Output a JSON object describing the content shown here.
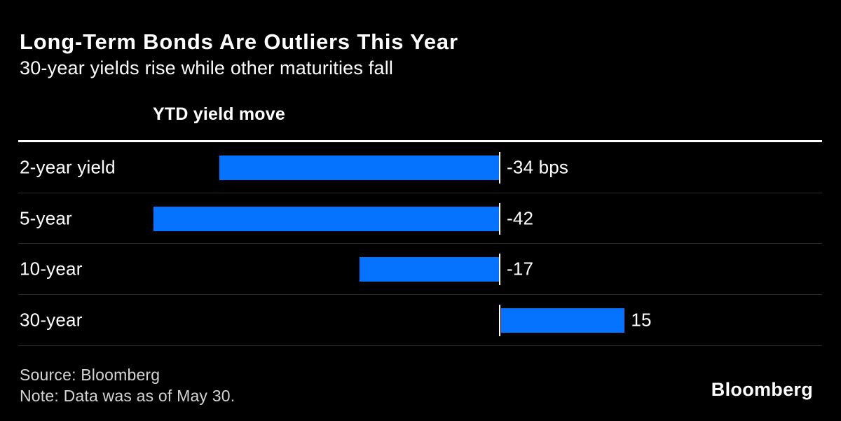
{
  "colors": {
    "background": "#000000",
    "bar_blue": "#0673ff",
    "separator": "#2b2b2b",
    "text_primary": "#ffffff",
    "text_footer": "#d4d4d4"
  },
  "chart_data": {
    "type": "bar",
    "orientation": "horizontal",
    "title": "Long-Term Bonds Are Outliers This Year",
    "subtitle": "30-year yields rise while other maturities fall",
    "axis_header": "YTD yield move",
    "categories": [
      "2-year yield",
      "5-year",
      "10-year",
      "30-year"
    ],
    "values": [
      -34,
      -42,
      -17,
      15
    ],
    "value_labels": [
      "-34 bps",
      "-42",
      "-17",
      "15"
    ],
    "unit": "bps",
    "baseline": 0,
    "xlim": [
      -58,
      39
    ],
    "grid": "row-separators-only",
    "legend": "none",
    "bar_color": "#0673ff"
  },
  "footer": {
    "source": "Source: Bloomberg",
    "note": "Note: Data was as of May 30.",
    "logo": "Bloomberg"
  }
}
